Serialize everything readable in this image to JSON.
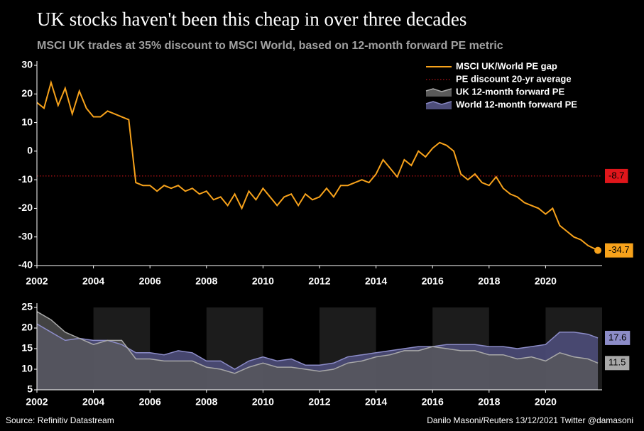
{
  "title": "UK stocks haven't been this cheap in over three decades",
  "subtitle": "MSCI UK trades at 35% discount to MSCI World, based on 12-month forward PE metric",
  "source": "Source: Refinitiv Datastream",
  "credit": "Danilo Masoni/Reuters 13/12/2021 Twitter @damasoni",
  "chart_data": [
    {
      "type": "line",
      "x": [
        2002,
        2002.25,
        2002.5,
        2002.75,
        2003,
        2003.25,
        2003.5,
        2003.75,
        2004,
        2004.25,
        2004.5,
        2004.75,
        2005,
        2005.25,
        2005.5,
        2005.75,
        2006,
        2006.25,
        2006.5,
        2006.75,
        2007,
        2007.25,
        2007.5,
        2007.75,
        2008,
        2008.25,
        2008.5,
        2008.75,
        2009,
        2009.25,
        2009.5,
        2009.75,
        2010,
        2010.25,
        2010.5,
        2010.75,
        2011,
        2011.25,
        2011.5,
        2011.75,
        2012,
        2012.25,
        2012.5,
        2012.75,
        2013,
        2013.25,
        2013.5,
        2013.75,
        2014,
        2014.25,
        2014.5,
        2014.75,
        2015,
        2015.25,
        2015.5,
        2015.75,
        2016,
        2016.25,
        2016.5,
        2016.75,
        2017,
        2017.25,
        2017.5,
        2017.75,
        2018,
        2018.25,
        2018.5,
        2018.75,
        2019,
        2019.25,
        2019.5,
        2019.75,
        2020,
        2020.25,
        2020.5,
        2020.75,
        2021,
        2021.25,
        2021.5,
        2021.85
      ],
      "series": [
        {
          "name": "MSCI UK/World PE gap",
          "color": "#f7a21b",
          "values": [
            17,
            15,
            24,
            16,
            22,
            13,
            21,
            15,
            12,
            12,
            14,
            13,
            12,
            11,
            -11,
            -12,
            -12,
            -14,
            -12,
            -13,
            -12,
            -14,
            -13,
            -15,
            -14,
            -17,
            -16,
            -19,
            -15,
            -20,
            -14,
            -17,
            -13,
            -16,
            -19,
            -16,
            -15,
            -19,
            -15,
            -17,
            -16,
            -13,
            -16,
            -12,
            -12,
            -11,
            -10,
            -11,
            -8,
            -3,
            -6,
            -9,
            -3,
            -5,
            0,
            -2,
            1,
            3,
            2,
            0,
            -8,
            -10,
            -8,
            -11,
            -12,
            -9,
            -13,
            -15,
            -16,
            -18,
            -19,
            -20,
            -22,
            -20,
            -26,
            -28,
            -30,
            -31,
            -33,
            -34.7
          ]
        }
      ],
      "reference_line": {
        "name": "PE discount 20-yr average",
        "value": -8.7,
        "color": "#e0161b"
      },
      "xlim": [
        2002,
        2022
      ],
      "xticks": [
        2002,
        2004,
        2006,
        2008,
        2010,
        2012,
        2014,
        2016,
        2018,
        2020
      ],
      "ylim": [
        -40,
        30
      ],
      "yticks": [
        30,
        20,
        10,
        0,
        -10,
        -20,
        -30,
        -40
      ]
    },
    {
      "type": "area",
      "x": [
        2002,
        2002.5,
        2003,
        2003.5,
        2004,
        2004.5,
        2005,
        2005.5,
        2006,
        2006.5,
        2007,
        2007.5,
        2008,
        2008.5,
        2009,
        2009.5,
        2010,
        2010.5,
        2011,
        2011.5,
        2012,
        2012.5,
        2013,
        2013.5,
        2014,
        2014.5,
        2015,
        2015.5,
        2016,
        2016.5,
        2017,
        2017.5,
        2018,
        2018.5,
        2019,
        2019.5,
        2020,
        2020.5,
        2021,
        2021.5,
        2021.85
      ],
      "series": [
        {
          "name": "World 12-month forward PE",
          "color": "#8c8cc8",
          "values": [
            21,
            19,
            17,
            17.5,
            17,
            17,
            16,
            14,
            14,
            13.5,
            14.5,
            14,
            12,
            12,
            10,
            12,
            13,
            12,
            12.5,
            11,
            11,
            11.5,
            13,
            13.5,
            14,
            14.5,
            15,
            15.5,
            15.5,
            16,
            16,
            16,
            15.5,
            15.5,
            15,
            15.5,
            16,
            19,
            19,
            18.5,
            17.6
          ]
        },
        {
          "name": "UK 12-month forward PE",
          "color": "#a8a8a8",
          "values": [
            24,
            22,
            19,
            17.5,
            16,
            17,
            17,
            12.5,
            12.5,
            12,
            12,
            12,
            10.5,
            10,
            9,
            10.5,
            11.5,
            10.5,
            10.5,
            10,
            9.5,
            10,
            11.5,
            12,
            13,
            13.5,
            14.5,
            14.5,
            15.5,
            15,
            14.5,
            14.5,
            13.5,
            13.5,
            12.5,
            13,
            12,
            14,
            13,
            12.5,
            11.5
          ]
        }
      ],
      "xlim": [
        2002,
        2022
      ],
      "xticks": [
        2002,
        2004,
        2006,
        2008,
        2010,
        2012,
        2014,
        2016,
        2018,
        2020
      ],
      "ylim": [
        5,
        25
      ],
      "yticks": [
        25,
        20,
        15,
        10,
        5
      ]
    }
  ]
}
